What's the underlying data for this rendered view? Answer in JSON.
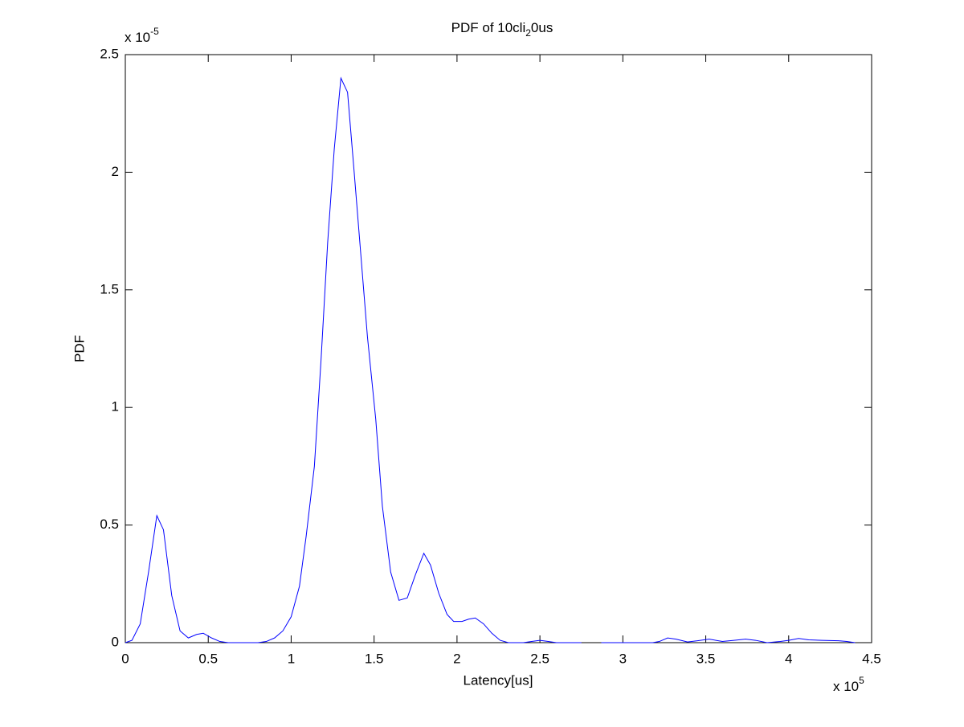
{
  "chart_data": {
    "type": "line",
    "title": "PDF of 10cli",
    "title_subscript": "2",
    "title_suffix": "0us",
    "x_label": "Latency[us]",
    "y_label": "PDF",
    "x_multiplier": {
      "base": "x 10",
      "exponent": "5"
    },
    "y_multiplier": {
      "base": "x 10",
      "exponent": "-5"
    },
    "xlim": [
      0,
      4.5
    ],
    "ylim": [
      0,
      2.5
    ],
    "xticks": [
      0,
      0.5,
      1,
      1.5,
      2,
      2.5,
      3,
      3.5,
      4,
      4.5
    ],
    "yticks": [
      0,
      0.5,
      1,
      1.5,
      2,
      2.5
    ],
    "grid": false,
    "series": [
      {
        "color": "#0000ff",
        "x": [
          0,
          0.04,
          0.09,
          0.14,
          0.19,
          0.23,
          0.28,
          0.33,
          0.38,
          0.43,
          0.47,
          0.52,
          0.57,
          0.62,
          0.7,
          0.8,
          0.85,
          0.9,
          0.95,
          1.0,
          1.05,
          1.09,
          1.14,
          1.18,
          1.22,
          1.26,
          1.3,
          1.34,
          1.38,
          1.42,
          1.46,
          1.51,
          1.55,
          1.6,
          1.65,
          1.7,
          1.75,
          1.8,
          1.84,
          1.89,
          1.94,
          1.98,
          2.03,
          2.07,
          2.11,
          2.16,
          2.21,
          2.26,
          2.31,
          2.4,
          2.45,
          2.5,
          2.55,
          2.6,
          2.75,
          2.8,
          2.87,
          3.0,
          3.18,
          3.22,
          3.27,
          3.32,
          3.39,
          3.45,
          3.52,
          3.6,
          3.67,
          3.74,
          3.8,
          3.87,
          3.95,
          4.0,
          4.06,
          4.12,
          4.2,
          4.3,
          4.35,
          4.4
        ],
        "values": [
          0,
          0.01,
          0.08,
          0.3,
          0.54,
          0.48,
          0.2,
          0.05,
          0.02,
          0.035,
          0.04,
          0.02,
          0.005,
          0,
          0,
          0,
          0.005,
          0.02,
          0.05,
          0.11,
          0.24,
          0.45,
          0.75,
          1.2,
          1.7,
          2.1,
          2.4,
          2.34,
          2.0,
          1.65,
          1.3,
          0.95,
          0.58,
          0.3,
          0.18,
          0.19,
          0.29,
          0.38,
          0.33,
          0.21,
          0.12,
          0.09,
          0.09,
          0.1,
          0.105,
          0.08,
          0.04,
          0.01,
          0,
          0,
          0.005,
          0.01,
          0.005,
          0,
          0,
          null,
          0,
          0,
          0,
          0.005,
          0.02,
          0.015,
          0.003,
          0.008,
          0.015,
          0.005,
          0.01,
          0.015,
          0.01,
          0,
          0.005,
          0.01,
          0.018,
          0.012,
          0.01,
          0.008,
          0.005,
          0
        ]
      }
    ]
  }
}
